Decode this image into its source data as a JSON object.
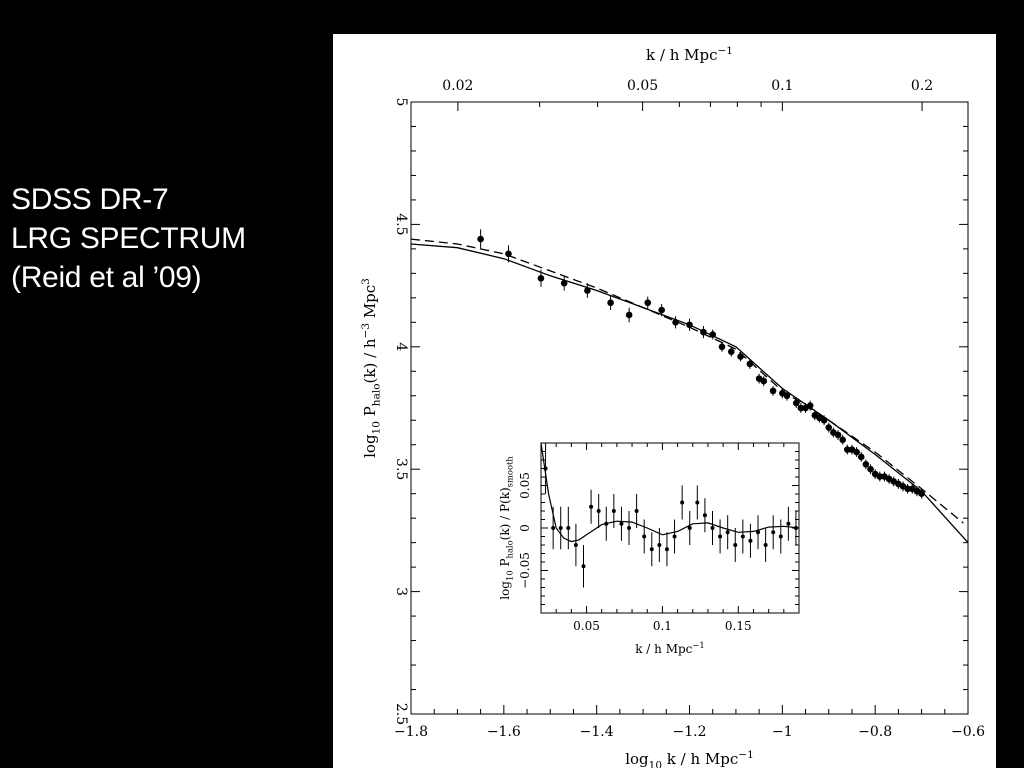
{
  "slide": {
    "caption_lines": [
      "SDSS DR-7",
      "LRG SPECTRUM",
      "(Reid et al ’09)"
    ],
    "text_color": "#ffffff",
    "background": "#000000"
  },
  "chart_data": [
    {
      "type": "scatter",
      "role": "main",
      "xlabel": "log10 k / h Mpc^-1",
      "ylabel": "log10 P_halo(k) / h^-3 Mpc^3",
      "top_axis_label": "k / h Mpc^-1",
      "xlim": [
        -1.8,
        -0.6
      ],
      "ylim": [
        2.5,
        5
      ],
      "x_ticks": [
        -1.8,
        -1.6,
        -1.4,
        -1.2,
        -1,
        -0.8,
        -0.6
      ],
      "x_tick_labels": [
        "−1.8",
        "−1.6",
        "−1.4",
        "−1.2",
        "−1",
        "−0.8",
        "−0.6"
      ],
      "y_ticks": [
        2.5,
        3,
        3.5,
        4,
        4.5,
        5
      ],
      "y_tick_labels": [
        "2.5",
        "3",
        "3.5",
        "4",
        "4.5",
        "5"
      ],
      "top_ticks": [
        0.02,
        0.05,
        0.1,
        0.2
      ],
      "top_tick_labels": [
        "0.02",
        "0.05",
        "0.1",
        "0.2"
      ],
      "grid": false,
      "series": [
        {
          "kind": "points_with_errorbars",
          "x": [
            -1.65,
            -1.59,
            -1.52,
            -1.47,
            -1.42,
            -1.37,
            -1.33,
            -1.29,
            -1.26,
            -1.23,
            -1.2,
            -1.17,
            -1.15,
            -1.13,
            -1.11,
            -1.09,
            -1.07,
            -1.05,
            -1.04,
            -1.02,
            -1.0,
            -0.99,
            -0.97,
            -0.96,
            -0.95,
            -0.94,
            -0.93,
            -0.92,
            -0.91,
            -0.9,
            -0.89,
            -0.88,
            -0.87,
            -0.86,
            -0.85,
            -0.84,
            -0.83,
            -0.82,
            -0.81,
            -0.8,
            -0.79,
            -0.78,
            -0.77,
            -0.76,
            -0.75,
            -0.74,
            -0.73,
            -0.72,
            -0.71,
            -0.7
          ],
          "y": [
            4.44,
            4.38,
            4.28,
            4.26,
            4.23,
            4.18,
            4.13,
            4.18,
            4.15,
            4.1,
            4.09,
            4.06,
            4.05,
            4.0,
            3.98,
            3.96,
            3.93,
            3.87,
            3.86,
            3.82,
            3.81,
            3.8,
            3.77,
            3.75,
            3.75,
            3.76,
            3.72,
            3.71,
            3.7,
            3.67,
            3.65,
            3.64,
            3.62,
            3.58,
            3.58,
            3.57,
            3.55,
            3.52,
            3.5,
            3.48,
            3.47,
            3.47,
            3.46,
            3.45,
            3.44,
            3.43,
            3.42,
            3.42,
            3.41,
            3.4
          ],
          "yerr": [
            0.04,
            0.035,
            0.035,
            0.03,
            0.03,
            0.03,
            0.03,
            0.025,
            0.025,
            0.025,
            0.025,
            0.025,
            0.02,
            0.02,
            0.02,
            0.02,
            0.02,
            0.02,
            0.02,
            0.02,
            0.02,
            0.02,
            0.02,
            0.02,
            0.02,
            0.02,
            0.02,
            0.02,
            0.02,
            0.02,
            0.02,
            0.02,
            0.02,
            0.02,
            0.02,
            0.02,
            0.02,
            0.02,
            0.02,
            0.02,
            0.02,
            0.02,
            0.02,
            0.02,
            0.02,
            0.02,
            0.02,
            0.02,
            0.02,
            0.02
          ]
        },
        {
          "kind": "line_solid",
          "x": [
            -1.8,
            -1.7,
            -1.6,
            -1.5,
            -1.4,
            -1.3,
            -1.2,
            -1.1,
            -1.0,
            -0.9,
            -0.8,
            -0.7,
            -0.6
          ],
          "y": [
            4.42,
            4.405,
            4.36,
            4.29,
            4.23,
            4.16,
            4.09,
            4.0,
            3.83,
            3.7,
            3.56,
            3.41,
            3.2
          ]
        },
        {
          "kind": "line_dashed",
          "x": [
            -1.8,
            -1.7,
            -1.6,
            -1.5,
            -1.4,
            -1.3,
            -1.2,
            -1.1,
            -1.0,
            -0.9,
            -0.8,
            -0.7,
            -0.61
          ],
          "y": [
            4.44,
            4.42,
            4.38,
            4.31,
            4.24,
            4.16,
            4.08,
            3.99,
            3.82,
            3.7,
            3.57,
            3.42,
            3.28
          ]
        }
      ]
    },
    {
      "type": "scatter",
      "role": "inset",
      "xlabel": "k / h Mpc^-1",
      "ylabel": "log10 P_halo(k) / P(k)_smooth",
      "xlim": [
        0.02,
        0.19
      ],
      "ylim": [
        -0.1,
        0.1
      ],
      "x_ticks": [
        0.05,
        0.1,
        0.15
      ],
      "x_tick_labels": [
        "0.05",
        "0.1",
        "0.15"
      ],
      "y_ticks": [
        -0.05,
        0,
        0.05
      ],
      "y_tick_labels": [
        "−0.05",
        "0",
        "0.05"
      ],
      "grid": false,
      "series": [
        {
          "kind": "points_with_errorbars",
          "x": [
            0.023,
            0.028,
            0.033,
            0.038,
            0.043,
            0.048,
            0.053,
            0.058,
            0.063,
            0.068,
            0.073,
            0.078,
            0.083,
            0.088,
            0.093,
            0.098,
            0.103,
            0.108,
            0.113,
            0.118,
            0.123,
            0.128,
            0.133,
            0.138,
            0.143,
            0.148,
            0.153,
            0.158,
            0.163,
            0.168,
            0.173,
            0.178,
            0.183,
            0.188
          ],
          "y": [
            0.07,
            0.0,
            0.0,
            0.0,
            -0.02,
            -0.045,
            0.025,
            0.02,
            0.005,
            0.02,
            0.005,
            0.0,
            0.02,
            -0.01,
            -0.025,
            -0.02,
            -0.025,
            -0.01,
            0.03,
            0.0,
            0.03,
            0.015,
            0.0,
            -0.01,
            -0.005,
            -0.02,
            -0.01,
            -0.015,
            -0.005,
            -0.02,
            -0.005,
            -0.01,
            0.005,
            0.0
          ],
          "yerr": [
            0.03,
            0.025,
            0.025,
            0.025,
            0.025,
            0.025,
            0.02,
            0.02,
            0.02,
            0.02,
            0.02,
            0.02,
            0.02,
            0.02,
            0.02,
            0.02,
            0.02,
            0.02,
            0.02,
            0.02,
            0.02,
            0.02,
            0.02,
            0.02,
            0.02,
            0.02,
            0.02,
            0.02,
            0.02,
            0.02,
            0.02,
            0.02,
            0.02,
            0.02
          ]
        },
        {
          "kind": "line_solid",
          "x": [
            0.02,
            0.025,
            0.03,
            0.035,
            0.04,
            0.045,
            0.05,
            0.055,
            0.06,
            0.07,
            0.08,
            0.09,
            0.1,
            0.11,
            0.12,
            0.13,
            0.14,
            0.15,
            0.16,
            0.17,
            0.18,
            0.19
          ],
          "y": [
            0.1,
            0.04,
            0.0,
            -0.012,
            -0.016,
            -0.014,
            -0.008,
            -0.002,
            0.004,
            0.008,
            0.007,
            0.0,
            -0.008,
            -0.004,
            0.005,
            0.006,
            0.0,
            -0.005,
            -0.004,
            0.001,
            0.002,
            0.0
          ]
        }
      ]
    }
  ]
}
